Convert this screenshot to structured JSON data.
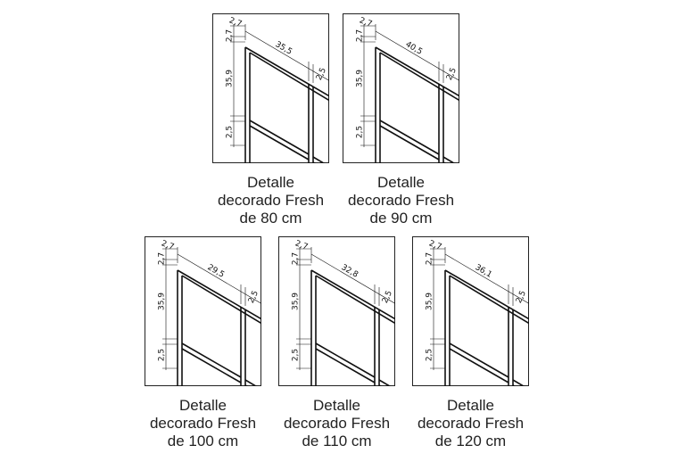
{
  "panels": [
    {
      "dimensions": {
        "top_thickness": "2,7",
        "side_thickness": "2,7",
        "width": "35,5",
        "right_thickness": "2,5",
        "height": "35,9",
        "bar_thickness": "2,5"
      },
      "caption": [
        "Detalle",
        "decorado Fresh",
        "de 80 cm"
      ]
    },
    {
      "dimensions": {
        "top_thickness": "2,7",
        "side_thickness": "2,7",
        "width": "40,5",
        "right_thickness": "2,5",
        "height": "35,9",
        "bar_thickness": "2,5"
      },
      "caption": [
        "Detalle",
        "decorado Fresh",
        "de 90 cm"
      ]
    },
    {
      "dimensions": {
        "top_thickness": "2,7",
        "side_thickness": "2,7",
        "width": "29,5",
        "right_thickness": "2,5",
        "height": "35,9",
        "bar_thickness": "2,5"
      },
      "caption": [
        "Detalle",
        "decorado Fresh",
        "de 100 cm"
      ]
    },
    {
      "dimensions": {
        "top_thickness": "2,7",
        "side_thickness": "2,7",
        "width": "32,8",
        "right_thickness": "2,5",
        "height": "35,9",
        "bar_thickness": "2,5"
      },
      "caption": [
        "Detalle",
        "decorado Fresh",
        "de 110 cm"
      ]
    },
    {
      "dimensions": {
        "top_thickness": "2,7",
        "side_thickness": "2,7",
        "width": "36,1",
        "right_thickness": "2,5",
        "height": "35,9",
        "bar_thickness": "2,5"
      },
      "caption": [
        "Detalle",
        "decorado Fresh",
        "de 120 cm"
      ]
    }
  ]
}
